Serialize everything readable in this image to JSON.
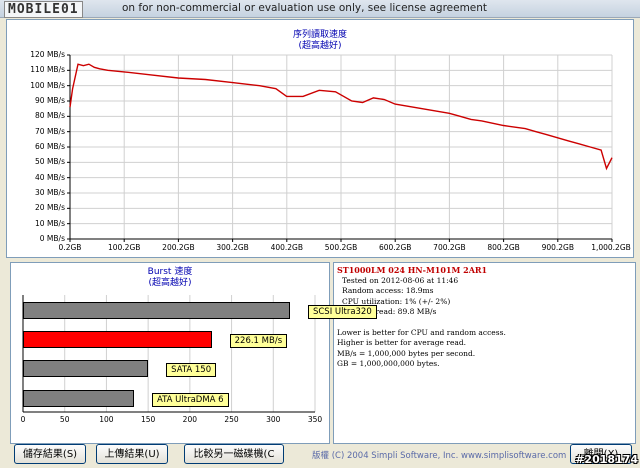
{
  "window": {
    "title": "on for non-commercial or evaluation use only, see license agreement",
    "logo": "MOBILE01"
  },
  "seq_chart": {
    "title_line1": "序列讀取速度",
    "title_line2": "(超高越好)"
  },
  "burst_chart": {
    "title_line1": "Burst 速度",
    "title_line2": "(超高越好)"
  },
  "chart_data": [
    {
      "type": "line",
      "title": "序列讀取速度 (超高越好)",
      "x_ticks": [
        "0.2GB",
        "100.2GB",
        "200.2GB",
        "300.2GB",
        "400.2GB",
        "500.2GB",
        "600.2GB",
        "700.2GB",
        "800.2GB",
        "900.2GB",
        "1,000.2GB"
      ],
      "y_ticks": [
        "0 MB/s",
        "10 MB/s",
        "20 MB/s",
        "30 MB/s",
        "40 MB/s",
        "50 MB/s",
        "60 MB/s",
        "70 MB/s",
        "80 MB/s",
        "90 MB/s",
        "100 MB/s",
        "110 MB/s",
        "120 MB/s"
      ],
      "xlim": [
        0.2,
        1000.2
      ],
      "ylim": [
        0,
        120
      ],
      "series_color": "#cc0000",
      "x": [
        0.2,
        5,
        15,
        25,
        35,
        45,
        55,
        70,
        100,
        150,
        200,
        250,
        300,
        350,
        380,
        400,
        430,
        460,
        490,
        520,
        540,
        560,
        580,
        600,
        650,
        700,
        720,
        740,
        760,
        800,
        820,
        840,
        860,
        880,
        900,
        920,
        940,
        960,
        980,
        990,
        1000.2
      ],
      "y": [
        86,
        98,
        114,
        113,
        114,
        112,
        111,
        110,
        109,
        107,
        105,
        104,
        102,
        100,
        98,
        93,
        93,
        97,
        96,
        90,
        89,
        92,
        91,
        88,
        85,
        82,
        80,
        78,
        77,
        74,
        73,
        72,
        70,
        68,
        66,
        64,
        62,
        60,
        58,
        46,
        53
      ]
    },
    {
      "type": "bar",
      "title": "Burst 速度 (超高越好)",
      "orientation": "horizontal",
      "categories": [
        "SCSI Ultra320",
        "226.1 MB/s",
        "SATA 150",
        "ATA UltraDMA 6"
      ],
      "values": [
        320,
        226.1,
        150,
        133
      ],
      "colors": [
        "#808080",
        "#ff0000",
        "#808080",
        "#808080"
      ],
      "x_ticks": [
        "0",
        "50",
        "100",
        "150",
        "200",
        "250",
        "300",
        "350"
      ],
      "xlim": [
        0,
        350
      ]
    }
  ],
  "info": {
    "drive": "ST1000LM 024 HN-M101M 2AR1",
    "tested": "Tested on 2012-08-06 at 11:46",
    "random": "Random access: 18.9ms",
    "cpu": "CPU utilization: 1% (+/- 2%)",
    "avg": "Average read: 89.8 MB/s",
    "note1": "Lower is better for CPU and random access.",
    "note2": "Higher is better for average read.",
    "note3": "MB/s = 1,000,000 bytes per second.",
    "note4": "GB = 1,000,000,000 bytes."
  },
  "buttons": {
    "save": "儲存結果(S)",
    "upload": "上傳結果(U)",
    "compare": "比較另一磁碟機(C",
    "exit": "離開(X)"
  },
  "footer": {
    "text": "版權 (C) 2004 Simpli Software, Inc. www.simplisoftware.com"
  },
  "watermark": "#2018174"
}
